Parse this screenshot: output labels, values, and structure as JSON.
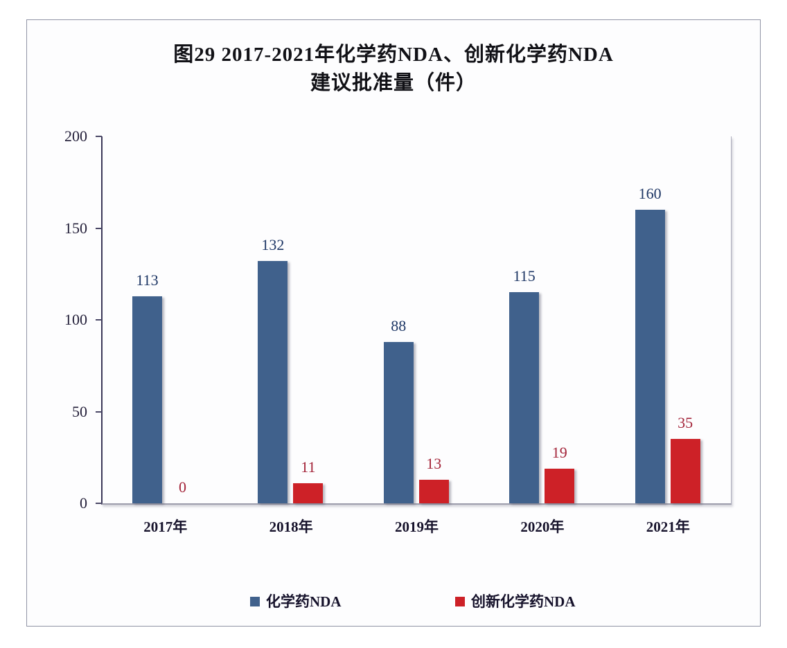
{
  "title_line1": "图29  2017-2021年化学药NDA、创新化学药NDA",
  "title_line2": "建议批准量（件）",
  "chart_data": {
    "type": "bar",
    "title": "图29 2017-2021年化学药NDA、创新化学药NDA 建议批准量（件）",
    "categories": [
      "2017年",
      "2018年",
      "2019年",
      "2020年",
      "2021年"
    ],
    "series": [
      {
        "name": "化学药NDA",
        "values": [
          113,
          132,
          88,
          115,
          160
        ]
      },
      {
        "name": "创新化学药NDA",
        "values": [
          0,
          11,
          13,
          19,
          35
        ]
      }
    ],
    "ylim": [
      0,
      200
    ],
    "yticks": [
      0,
      50,
      100,
      150,
      200
    ],
    "grid": false,
    "legend_position": "bottom",
    "value_labels_shown": true
  },
  "colors": {
    "bar_blue": "#40618c",
    "bar_red": "#cd2127",
    "value_label_blue": "#1c3564",
    "value_label_red": "#a32338",
    "axis_line": "#3b3858",
    "tick_text": "#221e38"
  },
  "legend": {
    "items": [
      {
        "label": "化学药NDA",
        "color": "#40618c"
      },
      {
        "label": "创新化学药NDA",
        "color": "#cd2127"
      }
    ]
  }
}
